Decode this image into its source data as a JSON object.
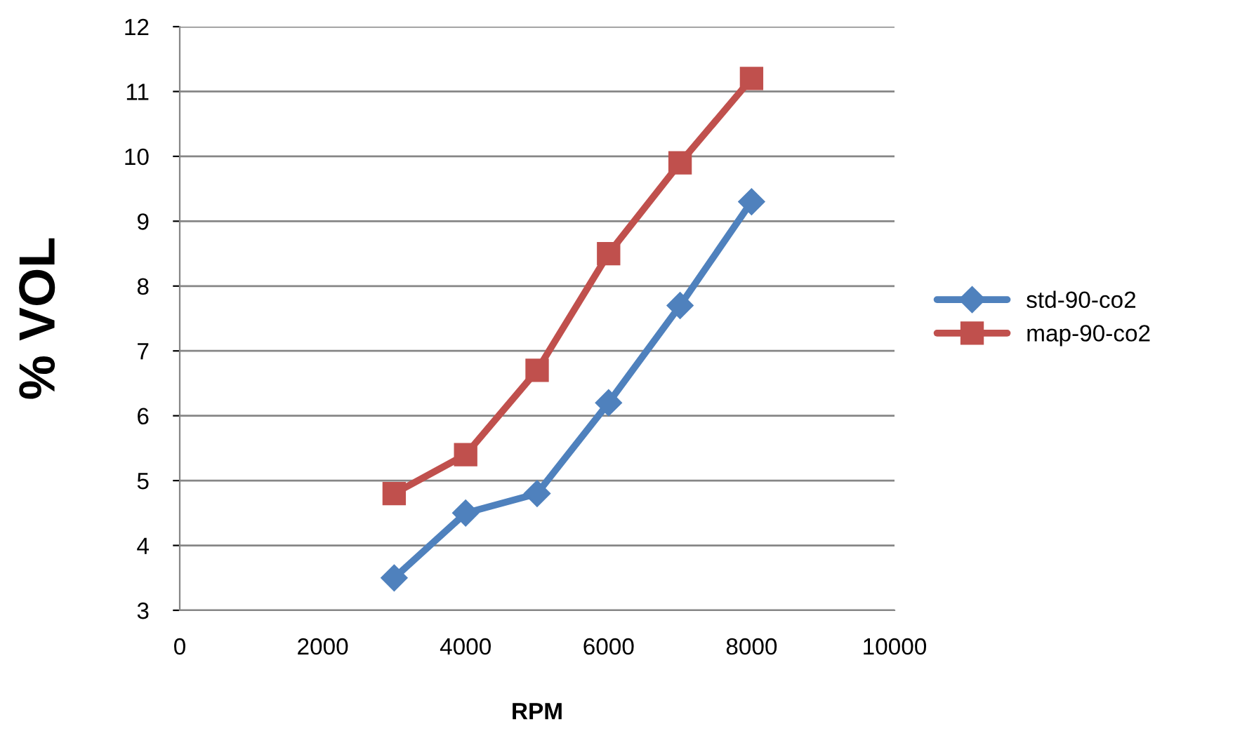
{
  "chart_data": {
    "type": "line",
    "xlabel": "RPM",
    "ylabel": "% VOL",
    "x": [
      3000,
      4000,
      5000,
      6000,
      7000,
      8000
    ],
    "series": [
      {
        "name": "std-90-co2",
        "color": "#4f81bd",
        "marker": "diamond",
        "values": [
          3.5,
          4.5,
          4.8,
          6.2,
          7.7,
          9.3
        ]
      },
      {
        "name": "map-90-co2",
        "color": "#c0504d",
        "marker": "square",
        "values": [
          4.8,
          5.4,
          6.7,
          8.5,
          9.9,
          11.2
        ]
      }
    ],
    "xlim": [
      0,
      10000
    ],
    "xticks": [
      0,
      2000,
      4000,
      6000,
      8000,
      10000
    ],
    "ylim": [
      3,
      12
    ],
    "yticks": [
      3,
      4,
      5,
      6,
      7,
      8,
      9,
      10,
      11,
      12
    ],
    "grid": "y",
    "legend": "right",
    "line_style": "solid"
  }
}
